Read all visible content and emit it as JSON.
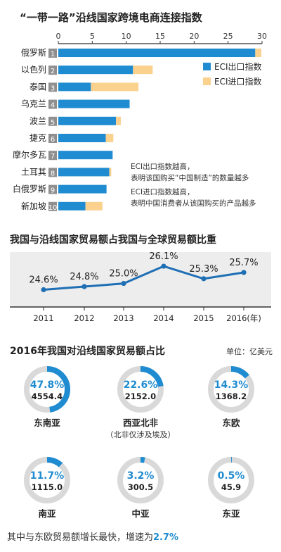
{
  "colors": {
    "export": "#1f8bd0",
    "import": "#fbd18e",
    "line": "#1f6fb5",
    "ring": "#d9d9d9",
    "accent": "#1f8bd0"
  },
  "chart_data": [
    {
      "type": "bar",
      "title": "“一带一路”沿线国家跨境电商连接指数",
      "orientation": "horizontal",
      "stacked": true,
      "xlim": [
        0,
        30
      ],
      "xticks": [
        0,
        5,
        10,
        15,
        20,
        25,
        30
      ],
      "categories": [
        "俄罗斯",
        "以色列",
        "泰国",
        "乌克兰",
        "波兰",
        "捷克",
        "摩尔多瓦",
        "土耳其",
        "白俄罗斯",
        "新加坡"
      ],
      "ranks": [
        "1",
        "2",
        "3",
        "4",
        "5",
        "6",
        "7",
        "8",
        "9",
        "10"
      ],
      "series": [
        {
          "name": "ECI出口指数",
          "values": [
            29.0,
            11.0,
            4.8,
            10.5,
            8.5,
            7.0,
            8.0,
            7.5,
            7.1,
            4.0
          ]
        },
        {
          "name": "ECI进口指数",
          "values": [
            0.9,
            2.9,
            7.0,
            0.0,
            0.7,
            1.1,
            0.0,
            0.3,
            0.0,
            2.5
          ]
        }
      ],
      "legend_position": "right",
      "annotations": [
        "ECI出口指数越高，",
        "表明该国购买“中国制造”的数量越多",
        "ECI进口指数越高，",
        "表明中国消费者从该国购买的产品越多"
      ]
    },
    {
      "type": "line",
      "title": "我国与沿线国家贸易额占我国与全球贸易额比重",
      "x": [
        "2011",
        "2012",
        "2013",
        "2014",
        "2015",
        "2016(年)"
      ],
      "values": [
        24.6,
        24.8,
        25.0,
        26.1,
        25.3,
        25.7
      ],
      "labels": [
        "24.6%",
        "24.8%",
        "25.0%",
        "26.1%",
        "25.3%",
        "25.7%"
      ],
      "ylim": [
        23.5,
        27.0
      ],
      "grid": false
    },
    {
      "type": "pie",
      "title": "2016年我国对沿线国家贸易额占比",
      "unit": "单位：亿美元",
      "items": [
        {
          "name": "东南亚",
          "note": "",
          "percent": 47.8,
          "percent_label": "47.8%",
          "value": "4554.4"
        },
        {
          "name": "西亚北非",
          "note": "（北非仅涉及埃及）",
          "percent": 22.6,
          "percent_label": "22.6%",
          "value": "2152.0"
        },
        {
          "name": "东欧",
          "note": "",
          "percent": 14.3,
          "percent_label": "14.3%",
          "value": "1368.2"
        },
        {
          "name": "南亚",
          "note": "",
          "percent": 11.7,
          "percent_label": "11.7%",
          "value": "1115.0"
        },
        {
          "name": "中亚",
          "note": "",
          "percent": 3.2,
          "percent_label": "3.2%",
          "value": "300.5"
        },
        {
          "name": "东亚",
          "note": "",
          "percent": 0.5,
          "percent_label": "0.5%",
          "value": "45.9"
        }
      ]
    }
  ],
  "footer": {
    "text": "其中与东欧贸易额增长最快，增速为",
    "highlight": "2.7%"
  }
}
